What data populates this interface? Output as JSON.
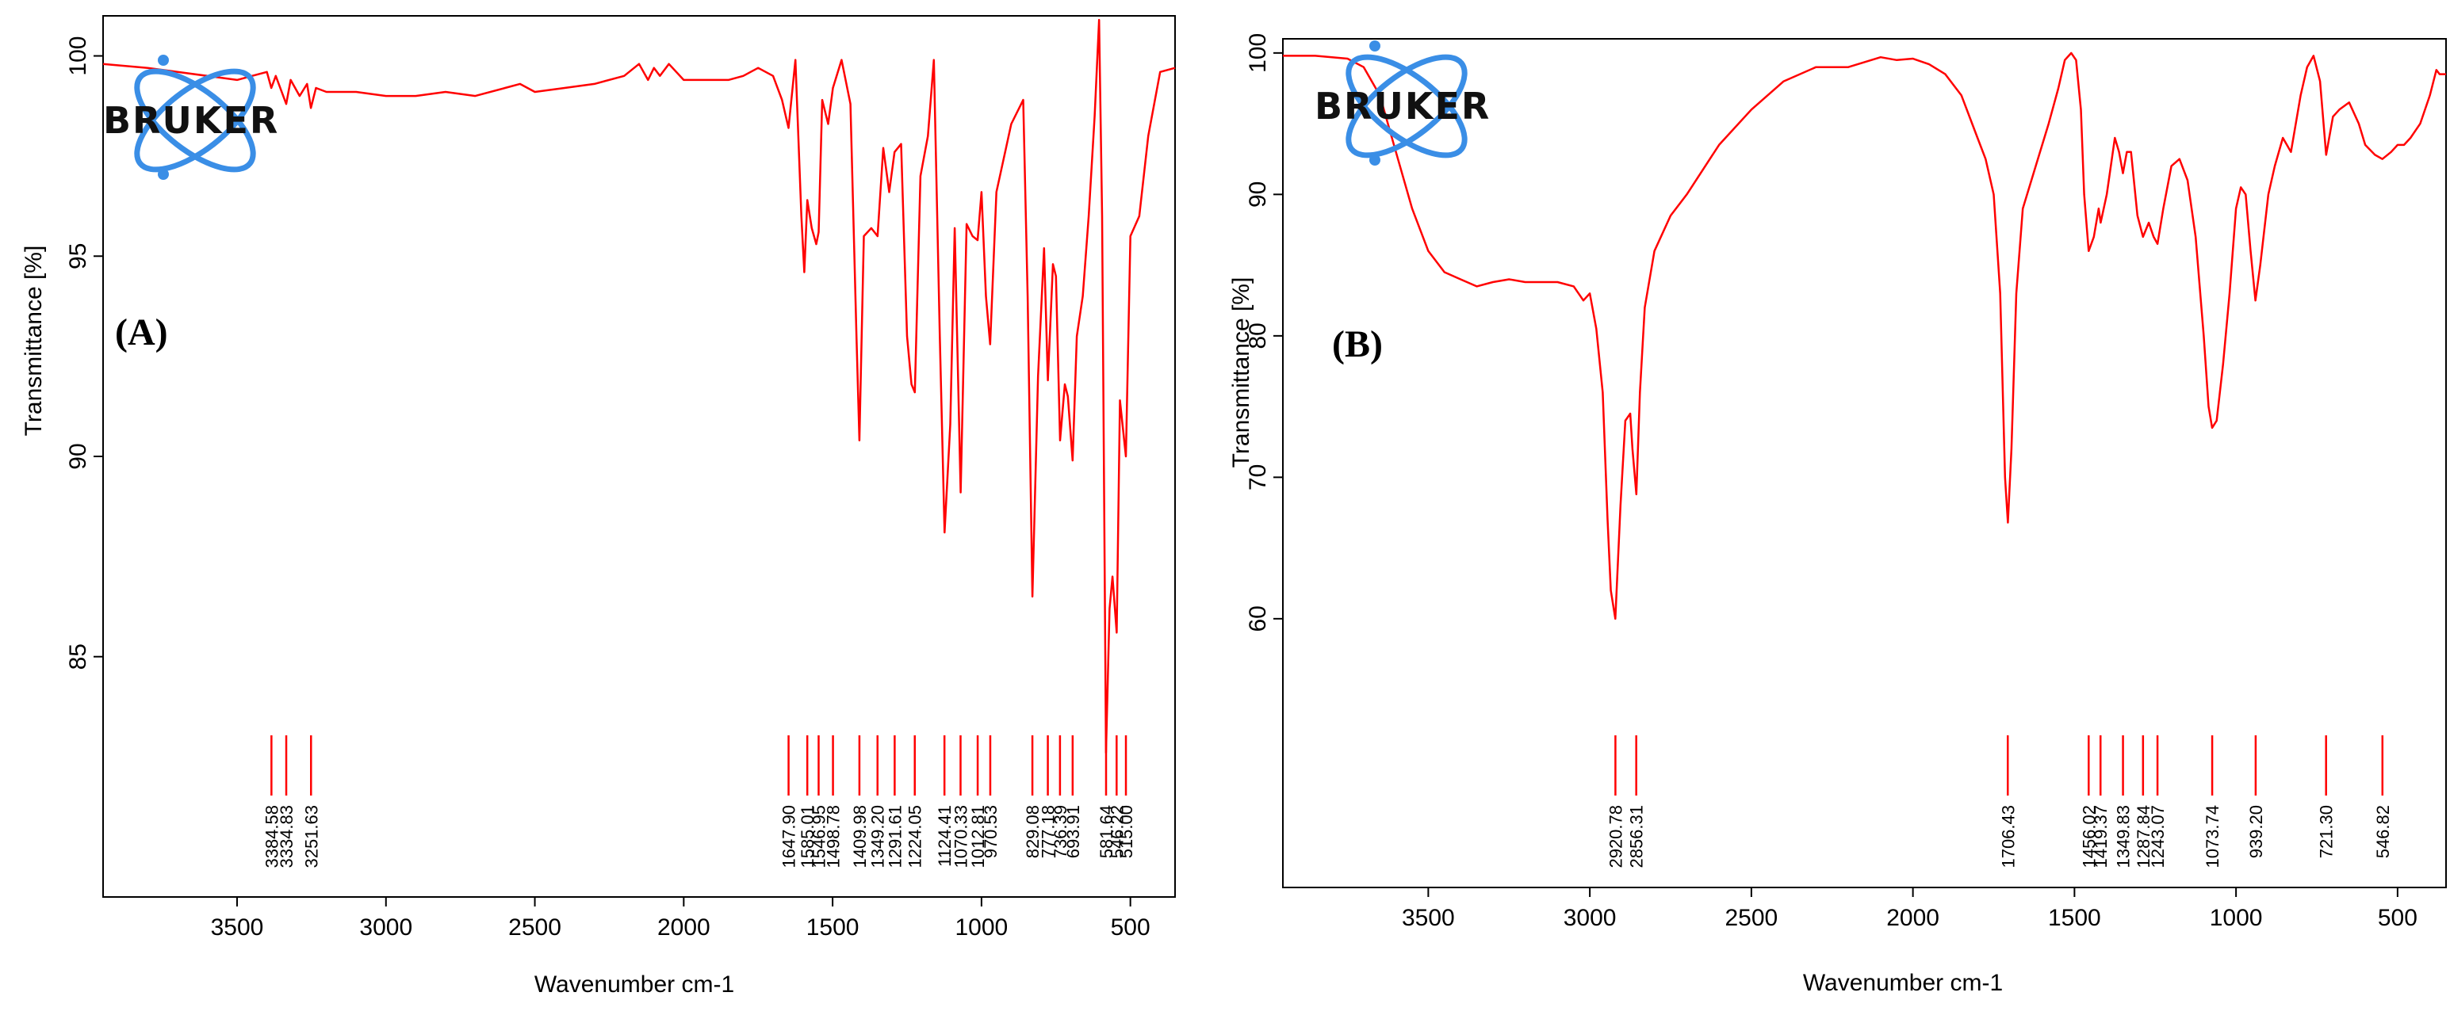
{
  "chart_data": [
    {
      "type": "line",
      "panel_label": "(A)",
      "logo_text": "BRUKER",
      "xlabel": "Wavenumber cm-1",
      "ylabel": "Transmittance [%]",
      "xlim": [
        3950,
        350
      ],
      "ylim": [
        79,
        101
      ],
      "xticks": [
        3500,
        3000,
        2500,
        2000,
        1500,
        1000,
        500
      ],
      "yticks": [
        85,
        90,
        95,
        100
      ],
      "color": "#ff0000",
      "x_reversed": true,
      "series": [
        {
          "x": [
            3950,
            3800,
            3700,
            3600,
            3500,
            3450,
            3400,
            3385,
            3370,
            3335,
            3320,
            3290,
            3265,
            3252,
            3235,
            3200,
            3100,
            3000,
            2900,
            2800,
            2700,
            2600,
            2550,
            2500,
            2400,
            2300,
            2200,
            2150,
            2120,
            2100,
            2080,
            2050,
            2000,
            1950,
            1900,
            1850,
            1800,
            1750,
            1700,
            1670,
            1648,
            1625,
            1605,
            1595,
            1585,
            1570,
            1555,
            1547,
            1535,
            1515,
            1499,
            1470,
            1440,
            1420,
            1410,
            1395,
            1370,
            1349,
            1330,
            1310,
            1292,
            1270,
            1250,
            1235,
            1224,
            1205,
            1180,
            1160,
            1140,
            1124,
            1105,
            1090,
            1070,
            1050,
            1030,
            1013,
            1000,
            985,
            971,
            950,
            900,
            860,
            845,
            829,
            810,
            790,
            777,
            760,
            750,
            736,
            720,
            710,
            694,
            680,
            660,
            640,
            620,
            605,
            595,
            582,
            570,
            560,
            546,
            535,
            515,
            500,
            470,
            440,
            400,
            350
          ],
          "y": [
            99.8,
            99.7,
            99.6,
            99.5,
            99.4,
            99.5,
            99.6,
            99.2,
            99.5,
            98.8,
            99.4,
            99.0,
            99.3,
            98.7,
            99.2,
            99.1,
            99.1,
            99.0,
            99.0,
            99.1,
            99.0,
            99.2,
            99.3,
            99.1,
            99.2,
            99.3,
            99.5,
            99.8,
            99.4,
            99.7,
            99.5,
            99.8,
            99.4,
            99.4,
            99.4,
            99.4,
            99.5,
            99.7,
            99.5,
            98.9,
            98.2,
            99.9,
            96.0,
            94.6,
            96.4,
            95.7,
            95.3,
            95.6,
            98.9,
            98.3,
            99.2,
            99.9,
            98.8,
            93.0,
            90.4,
            95.5,
            95.7,
            95.5,
            97.7,
            96.6,
            97.6,
            97.8,
            93.0,
            91.8,
            91.6,
            97.0,
            98.0,
            99.9,
            93.0,
            88.1,
            90.8,
            95.7,
            89.1,
            95.8,
            95.5,
            95.4,
            96.6,
            94.0,
            92.8,
            96.6,
            98.3,
            98.9,
            94.0,
            86.5,
            92.0,
            95.2,
            91.9,
            94.8,
            94.5,
            90.4,
            91.8,
            91.5,
            89.9,
            93.0,
            94.0,
            96.0,
            98.5,
            100.9,
            96.0,
            82.6,
            86.2,
            87.0,
            85.6,
            91.4,
            90.0,
            95.5,
            96.0,
            98.0,
            99.6,
            99.7
          ]
        }
      ],
      "peaks": [
        {
          "x": 3384.58,
          "label": "3384.58"
        },
        {
          "x": 3334.83,
          "label": "3334.83"
        },
        {
          "x": 3251.63,
          "label": "3251.63"
        },
        {
          "x": 1647.9,
          "label": "1647.90"
        },
        {
          "x": 1585.01,
          "label": "1585.01"
        },
        {
          "x": 1546.95,
          "label": "1546.95"
        },
        {
          "x": 1498.78,
          "label": "1498.78"
        },
        {
          "x": 1409.98,
          "label": "1409.98"
        },
        {
          "x": 1349.2,
          "label": "1349.20"
        },
        {
          "x": 1291.61,
          "label": "1291.61"
        },
        {
          "x": 1224.05,
          "label": "1224.05"
        },
        {
          "x": 1124.41,
          "label": "1124.41"
        },
        {
          "x": 1070.33,
          "label": "1070.33"
        },
        {
          "x": 1012.81,
          "label": "1012.81"
        },
        {
          "x": 970.53,
          "label": "970.53"
        },
        {
          "x": 829.08,
          "label": "829.08"
        },
        {
          "x": 777.18,
          "label": "777.18"
        },
        {
          "x": 736.39,
          "label": "736.39"
        },
        {
          "x": 693.91,
          "label": "693.91"
        },
        {
          "x": 581.64,
          "label": "581.64"
        },
        {
          "x": 546.22,
          "label": "546.22"
        },
        {
          "x": 515.0,
          "label": "515.00"
        }
      ]
    },
    {
      "type": "line",
      "panel_label": "(B)",
      "logo_text": "BRUKER",
      "xlabel": "Wavenumber cm-1",
      "ylabel": "Transmittance [%]",
      "xlim": [
        3950,
        350
      ],
      "ylim": [
        41,
        101
      ],
      "xticks": [
        3500,
        3000,
        2500,
        2000,
        1500,
        1000,
        500
      ],
      "yticks": [
        60,
        70,
        80,
        90,
        100
      ],
      "color": "#ff0000",
      "x_reversed": true,
      "series": [
        {
          "x": [
            3950,
            3850,
            3750,
            3700,
            3650,
            3600,
            3550,
            3500,
            3450,
            3400,
            3350,
            3300,
            3250,
            3200,
            3100,
            3050,
            3020,
            3000,
            2980,
            2960,
            2945,
            2935,
            2921,
            2905,
            2890,
            2875,
            2868,
            2856,
            2845,
            2830,
            2800,
            2750,
            2700,
            2600,
            2500,
            2400,
            2300,
            2200,
            2100,
            2050,
            2000,
            1950,
            1900,
            1850,
            1800,
            1775,
            1750,
            1730,
            1715,
            1706,
            1695,
            1680,
            1660,
            1620,
            1580,
            1550,
            1530,
            1510,
            1495,
            1480,
            1470,
            1456,
            1440,
            1425,
            1419,
            1400,
            1375,
            1362,
            1350,
            1338,
            1325,
            1305,
            1288,
            1270,
            1255,
            1243,
            1225,
            1200,
            1175,
            1150,
            1125,
            1100,
            1085,
            1074,
            1060,
            1040,
            1020,
            1000,
            985,
            970,
            955,
            940,
            925,
            900,
            880,
            855,
            830,
            800,
            780,
            760,
            740,
            721,
            700,
            680,
            650,
            620,
            600,
            570,
            547,
            520,
            500,
            480,
            460,
            430,
            400,
            380,
            370,
            350
          ],
          "y": [
            99.8,
            99.8,
            99.6,
            99.0,
            97.0,
            93.0,
            89.0,
            86.0,
            84.5,
            84.0,
            83.5,
            83.8,
            84.0,
            83.8,
            83.8,
            83.5,
            82.5,
            83.0,
            80.5,
            76.0,
            67.0,
            62.0,
            60.0,
            68.0,
            74.0,
            74.5,
            72.0,
            68.8,
            76.0,
            82.0,
            86.0,
            88.5,
            90.0,
            93.5,
            96.0,
            98.0,
            99.0,
            99.0,
            99.7,
            99.5,
            99.6,
            99.2,
            98.5,
            97.0,
            94.0,
            92.5,
            90.0,
            83.0,
            70.0,
            66.8,
            72.0,
            83.0,
            89.0,
            92.0,
            95.0,
            97.5,
            99.5,
            100.0,
            99.5,
            96.0,
            90.0,
            86.0,
            87.0,
            89.0,
            88.0,
            90.0,
            94.0,
            93.0,
            91.5,
            93.0,
            93.0,
            88.5,
            87.0,
            88.0,
            87.0,
            86.5,
            89.0,
            92.0,
            92.5,
            91.0,
            87.0,
            80.0,
            75.0,
            73.5,
            74.0,
            78.0,
            83.0,
            89.0,
            90.5,
            90.0,
            86.0,
            82.5,
            85.0,
            90.0,
            92.0,
            94.0,
            93.0,
            97.0,
            99.0,
            99.8,
            98.0,
            92.8,
            95.5,
            96.0,
            96.5,
            95.0,
            93.5,
            92.8,
            92.5,
            93.0,
            93.5,
            93.5,
            94.0,
            95.0,
            97.0,
            98.8,
            98.5,
            98.5
          ]
        }
      ],
      "peaks": [
        {
          "x": 2920.78,
          "label": "2920.78"
        },
        {
          "x": 2856.31,
          "label": "2856.31"
        },
        {
          "x": 1706.43,
          "label": "1706.43"
        },
        {
          "x": 1456.02,
          "label": "1456.02"
        },
        {
          "x": 1419.37,
          "label": "1419.37"
        },
        {
          "x": 1349.83,
          "label": "1349.83"
        },
        {
          "x": 1287.84,
          "label": "1287.84"
        },
        {
          "x": 1243.07,
          "label": "1243.07"
        },
        {
          "x": 1073.74,
          "label": "1073.74"
        },
        {
          "x": 939.2,
          "label": "939.20"
        },
        {
          "x": 721.3,
          "label": "721.30"
        },
        {
          "x": 546.82,
          "label": "546.82"
        }
      ]
    }
  ]
}
